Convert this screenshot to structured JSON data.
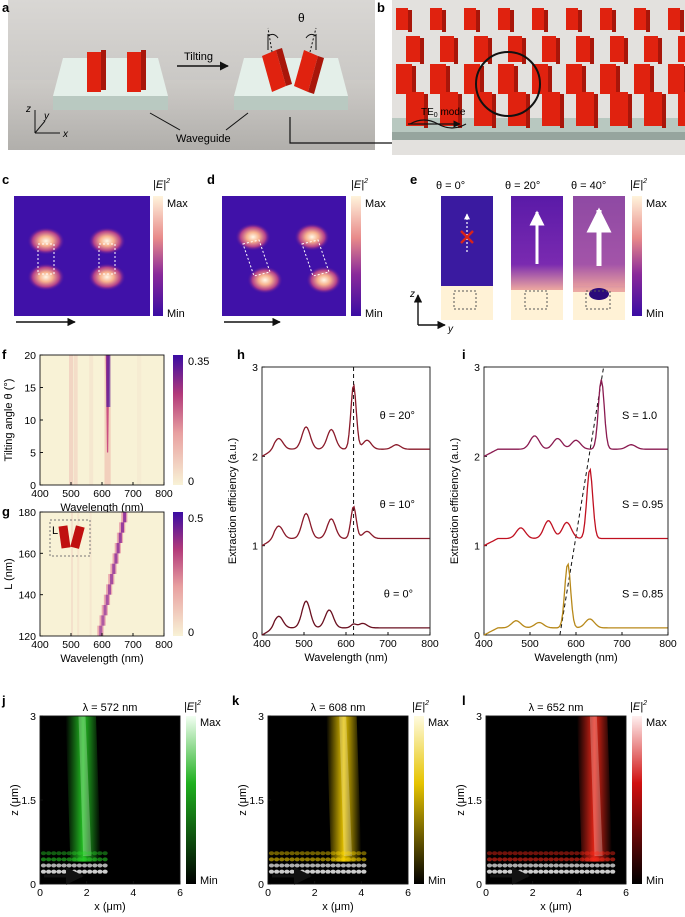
{
  "panel_letters": {
    "a": "a",
    "b": "b",
    "c": "c",
    "d": "d",
    "e": "e",
    "f": "f",
    "g": "g",
    "h": "h",
    "i": "i",
    "j": "j",
    "k": "k",
    "l": "l"
  },
  "panel_a": {
    "tilting": "Tilting",
    "theta": "θ",
    "waveguide": "Waveguide",
    "axis_x": "x",
    "axis_y": "y",
    "axis_z": "z"
  },
  "panel_b": {
    "mode_prefix": "TE",
    "mode_sub": "0",
    "mode_suffix": " mode"
  },
  "field_map": {
    "title": "|E|",
    "title_sup": "2",
    "max": "Max",
    "min": "Min"
  },
  "panel_e": {
    "theta_labels": [
      "θ = 0°",
      "θ = 20°",
      "θ = 40°"
    ],
    "axis_z": "z",
    "axis_y": "y"
  },
  "colors": {
    "hot_dark": "#3a0ca3",
    "hot_light": "#fff4dc",
    "red": "#e0220f",
    "wine": "#8a1a2a",
    "gold": "#b8891a",
    "purple": "#7a2a8a",
    "map_bg": "#f8f2d6"
  },
  "chart_data": [
    {
      "id": "f",
      "type": "heatmap",
      "xlabel": "Wavelength (nm)",
      "ylabel": "Tilting angle θ (°)",
      "xlim": [
        400,
        800
      ],
      "ylim": [
        0,
        20
      ],
      "xticks": [
        400,
        500,
        600,
        700,
        800
      ],
      "yticks": [
        0,
        5,
        10,
        15,
        20
      ],
      "colorbar": {
        "min": "0",
        "max": "0.35"
      }
    },
    {
      "id": "g",
      "type": "heatmap",
      "xlabel": "Wavelength (nm)",
      "ylabel": "L (nm)",
      "xlim": [
        400,
        800
      ],
      "ylim": [
        120,
        180
      ],
      "xticks": [
        400,
        500,
        600,
        700,
        800
      ],
      "yticks": [
        120,
        140,
        160,
        180
      ],
      "colorbar": {
        "min": "0",
        "max": "0.5"
      },
      "inset_label": "L"
    },
    {
      "id": "h",
      "type": "line",
      "xlabel": "Wavelength (nm)",
      "ylabel": "Extraction efficiency (a.u.)",
      "xlim": [
        400,
        800
      ],
      "ylim": [
        0,
        3
      ],
      "xticks": [
        400,
        500,
        600,
        700,
        800
      ],
      "yticks": [
        0,
        1,
        2,
        3
      ],
      "dashed_x": 618,
      "series": [
        {
          "name": "θ = 20°",
          "offset": 2.0,
          "peak_nm": 618,
          "peak_val": 0.72,
          "bumps": [
            [
              440,
              0.12
            ],
            [
              505,
              0.25
            ],
            [
              565,
              0.22
            ],
            [
              650,
              0.1
            ],
            [
              720,
              0.05
            ]
          ]
        },
        {
          "name": "θ = 10°",
          "offset": 1.0,
          "peak_nm": 618,
          "peak_val": 0.36,
          "bumps": [
            [
              440,
              0.14
            ],
            [
              505,
              0.28
            ],
            [
              565,
              0.22
            ],
            [
              650,
              0.08
            ]
          ]
        },
        {
          "name": "θ = 0°",
          "offset": 0.0,
          "peak_nm": 618,
          "peak_val": 0.04,
          "bumps": [
            [
              440,
              0.13
            ],
            [
              505,
              0.3
            ],
            [
              560,
              0.2
            ],
            [
              640,
              0.05
            ]
          ]
        }
      ]
    },
    {
      "id": "i",
      "type": "line",
      "xlabel": "Wavelength (nm)",
      "ylabel": "Extraction efficiency (a.u.)",
      "xlim": [
        400,
        800
      ],
      "ylim": [
        0,
        3
      ],
      "xticks": [
        400,
        500,
        600,
        700,
        800
      ],
      "yticks": [
        0,
        1,
        2,
        3
      ],
      "dashed_line": [
        [
          565,
          0
        ],
        [
          660,
          3
        ]
      ],
      "series": [
        {
          "name": "S = 1.0",
          "offset": 2.0,
          "peak_nm": 655,
          "peak_val": 0.78,
          "bumps": [
            [
              510,
              0.15
            ],
            [
              560,
              0.12
            ],
            [
              600,
              0.1
            ],
            [
              720,
              0.05
            ]
          ],
          "color": "#8a1a50"
        },
        {
          "name": "S = 0.95",
          "offset": 1.0,
          "peak_nm": 630,
          "peak_val": 0.78,
          "bumps": [
            [
              480,
              0.12
            ],
            [
              540,
              0.2
            ],
            [
              580,
              0.18
            ]
          ],
          "color": "#c01020"
        },
        {
          "name": "S = 0.85",
          "offset": 0.0,
          "peak_nm": 582,
          "peak_val": 0.72,
          "bumps": [
            [
              470,
              0.08
            ],
            [
              520,
              0.06
            ],
            [
              630,
              0.1
            ]
          ],
          "color": "#b8891a"
        }
      ]
    },
    {
      "id": "j",
      "type": "heatmap",
      "title": "λ = 572 nm",
      "xlabel": "x (μm)",
      "ylabel": "z (μm)",
      "xlim": [
        0,
        6
      ],
      "ylim": [
        0,
        3
      ],
      "xticks": [
        0,
        2,
        4,
        6
      ],
      "yticks": [
        0,
        1.5,
        3
      ],
      "beam_x_um": 2.2,
      "color": "#28d428"
    },
    {
      "id": "k",
      "type": "heatmap",
      "title": "λ = 608 nm",
      "xlabel": "x (μm)",
      "ylabel": "z (μm)",
      "xlim": [
        0,
        6
      ],
      "ylim": [
        0,
        3
      ],
      "xticks": [
        0,
        2,
        4,
        6
      ],
      "yticks": [
        0,
        1.5,
        3
      ],
      "beam_x_um": 3.6,
      "color": "#ffd800"
    },
    {
      "id": "l",
      "type": "heatmap",
      "title": "λ = 652 nm",
      "xlabel": "x (μm)",
      "ylabel": "z (μm)",
      "xlim": [
        0,
        6
      ],
      "ylim": [
        0,
        3
      ],
      "xticks": [
        0,
        2,
        4,
        6
      ],
      "yticks": [
        0,
        1.5,
        3
      ],
      "beam_x_um": 5.0,
      "color": "#ff2a1a"
    }
  ]
}
